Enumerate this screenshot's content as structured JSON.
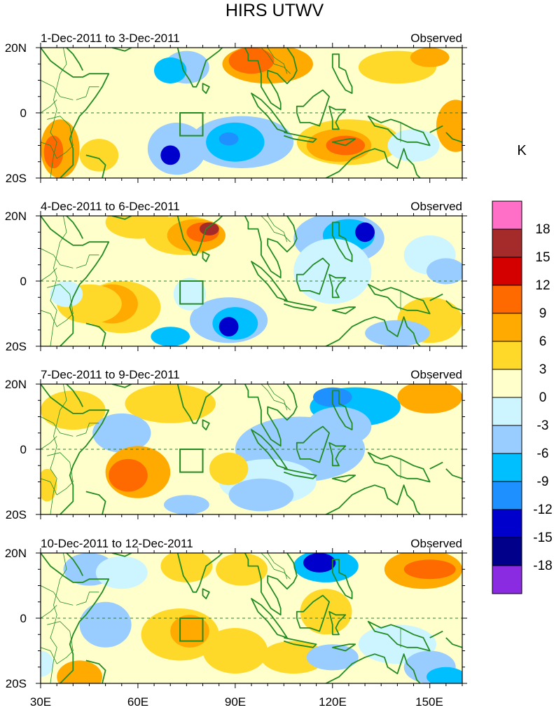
{
  "title": "HIRS UTWV",
  "colorbar": {
    "unit": "K",
    "levels": [
      "18",
      "15",
      "12",
      "9",
      "6",
      "3",
      "0",
      "-3",
      "-6",
      "-9",
      "-12",
      "-15",
      "-18"
    ],
    "colors": [
      "#ff6ec7",
      "#a52a2a",
      "#d40000",
      "#ff6a00",
      "#ffaa00",
      "#ffd92a",
      "#ffffcc",
      "#ccf5ff",
      "#99ccff",
      "#00bfff",
      "#1e90ff",
      "#0000cd",
      "#00008b",
      "#8a2be2"
    ]
  },
  "axes": {
    "y_labels": [
      "20N",
      "0",
      "20S"
    ],
    "x_labels": [
      "30E",
      "60E",
      "90E",
      "120E",
      "150E"
    ],
    "lon_range": [
      30,
      160
    ],
    "lat_range": [
      -20,
      20
    ]
  },
  "panels": [
    {
      "period": "1-Dec-2011 to 3-Dec-2011",
      "label": "Observed"
    },
    {
      "period": "4-Dec-2011 to 6-Dec-2011",
      "label": "Observed"
    },
    {
      "period": "7-Dec-2011 to 9-Dec-2011",
      "label": "Observed"
    },
    {
      "period": "10-Dec-2011 to 12-Dec-2011",
      "label": "Observed"
    }
  ]
}
